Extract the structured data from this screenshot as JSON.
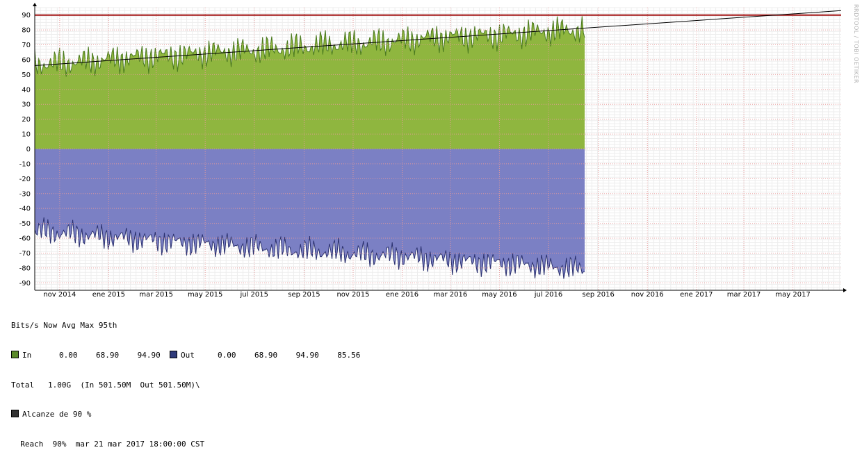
{
  "watermark": "RRDTOOL / TOBI OETIKER",
  "legend": {
    "header": "Bits/s Now Avg Max 95th",
    "in_label": "In",
    "in_now": "0.00",
    "in_avg": "68.90",
    "in_max": "94.90",
    "out_label": "Out",
    "out_now": "0.00",
    "out_avg": "68.90",
    "out_max": "94.90",
    "out_95th": "85.56",
    "total_label": "Total",
    "total_value": "1.00G",
    "total_detail": "(In 501.50M  Out 501.50M)\\",
    "threshold_label": "Alcanze de 90 %",
    "reach_line": "Reach  90%  mar 21 mar 2017 18:00:00 CST"
  },
  "chart_data": {
    "type": "area",
    "title": "",
    "xlabel": "",
    "ylabel": "",
    "ylim": [
      -95,
      95
    ],
    "y_ticks": [
      90,
      80,
      70,
      60,
      50,
      40,
      30,
      20,
      10,
      0,
      -10,
      -20,
      -30,
      -40,
      -50,
      -60,
      -70,
      -80,
      -90
    ],
    "x_range": [
      "2014-10-01",
      "2017-06-30"
    ],
    "x_ticks": [
      {
        "date": "2014-11-01",
        "label": "nov 2014"
      },
      {
        "date": "2015-01-01",
        "label": "ene 2015"
      },
      {
        "date": "2015-03-01",
        "label": "mar 2015"
      },
      {
        "date": "2015-05-01",
        "label": "may 2015"
      },
      {
        "date": "2015-07-01",
        "label": "jul 2015"
      },
      {
        "date": "2015-09-01",
        "label": "sep 2015"
      },
      {
        "date": "2015-11-01",
        "label": "nov 2015"
      },
      {
        "date": "2016-01-01",
        "label": "ene 2016"
      },
      {
        "date": "2016-03-01",
        "label": "mar 2016"
      },
      {
        "date": "2016-05-01",
        "label": "may 2016"
      },
      {
        "date": "2016-07-01",
        "label": "jul 2016"
      },
      {
        "date": "2016-09-01",
        "label": "sep 2016"
      },
      {
        "date": "2016-11-01",
        "label": "nov 2016"
      },
      {
        "date": "2017-01-01",
        "label": "ene 2017"
      },
      {
        "date": "2017-03-01",
        "label": "mar 2017"
      },
      {
        "date": "2017-05-01",
        "label": "may 2017"
      }
    ],
    "grid": true,
    "series": [
      {
        "name": "In",
        "color": "#8fb63f",
        "line_color": "#4a7a1e",
        "highlight_color": "#d7e572",
        "x": [
          "2014-10-01",
          "2014-11-15",
          "2015-01-01",
          "2015-02-15",
          "2015-04-01",
          "2015-05-15",
          "2015-07-01",
          "2015-08-15",
          "2015-10-01",
          "2015-11-15",
          "2016-01-01",
          "2016-02-15",
          "2016-04-01",
          "2016-05-15",
          "2016-07-01",
          "2016-08-15"
        ],
        "y": [
          57,
          58,
          60,
          62,
          63,
          65,
          66,
          68,
          70,
          71,
          73,
          75,
          76,
          77,
          79,
          80
        ]
      },
      {
        "name": "Out",
        "color": "#7b80c4",
        "line_color": "#2b3170",
        "x": [
          "2014-10-01",
          "2014-11-15",
          "2015-01-01",
          "2015-02-15",
          "2015-04-01",
          "2015-05-15",
          "2015-07-01",
          "2015-08-15",
          "2015-10-01",
          "2015-11-15",
          "2016-01-01",
          "2016-02-15",
          "2016-04-01",
          "2016-05-15",
          "2016-07-01",
          "2016-08-15"
        ],
        "y": [
          -55,
          -57,
          -59,
          -61,
          -63,
          -64,
          -66,
          -68,
          -69,
          -71,
          -72,
          -74,
          -76,
          -77,
          -79,
          -81
        ]
      },
      {
        "name": "Alcanze de 90 %",
        "color": "#a01010",
        "x": [
          "2014-10-01",
          "2017-06-30"
        ],
        "y": [
          90,
          90
        ]
      }
    ],
    "trend": {
      "x": [
        "2014-10-01",
        "2017-06-30"
      ],
      "y": [
        56,
        93
      ],
      "color": "#000000"
    },
    "colors": {
      "grid_major": "#e89a9a",
      "grid_minor": "#ededed",
      "axis": "#000000"
    }
  }
}
